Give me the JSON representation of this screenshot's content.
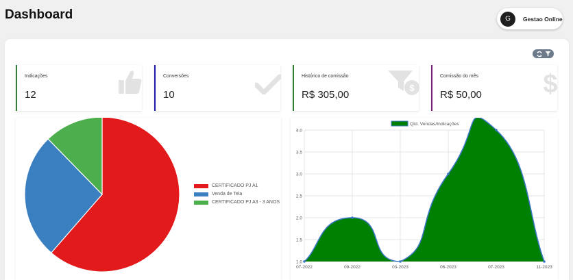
{
  "header": {
    "title": "Dashboard",
    "user": {
      "initial": "G",
      "name": "Gestao Online"
    }
  },
  "tools": {
    "refresh_icon": "refresh-icon",
    "filter_icon": "filter-icon"
  },
  "cards": [
    {
      "label": "Indicações",
      "value": "12",
      "accent": "#2e7d32",
      "icon": "thumbs-up-icon"
    },
    {
      "label": "Conversões",
      "value": "10",
      "accent": "#1a1aa8",
      "icon": "check-icon"
    },
    {
      "label": "Histórico de comissão",
      "value": "R$ 305,00",
      "accent": "#2e7d32",
      "icon": "funnel-dollar-icon"
    },
    {
      "label": "Comissão do mês",
      "value": "R$ 50,00",
      "accent": "#7b1f7b",
      "icon": "dollar-icon"
    }
  ],
  "chart_data": [
    {
      "type": "pie",
      "categories": [
        "CERTIFICADO PJ A1",
        "Venda de Tela",
        "CERTIFICADO PJ A3 - 3 ANOS"
      ],
      "values": [
        7,
        3,
        1.4
      ],
      "colors": [
        "#e31a1c",
        "#3a7fc0",
        "#4cae4c"
      ],
      "legend": "right"
    },
    {
      "type": "area",
      "x": [
        "07-2022",
        "09-2022",
        "03-2023",
        "06-2023",
        "07-2023",
        "11-2023"
      ],
      "series": [
        {
          "name": "Qtd. Vendas/Indicações",
          "values": [
            1,
            2,
            1,
            3,
            4,
            1
          ],
          "color": "#008000",
          "line_color": "#3a78c2"
        }
      ],
      "ylim": [
        1,
        4
      ],
      "yticks": [
        "1.0",
        "1.5",
        "2.0",
        "2.5",
        "3.0",
        "3.5",
        "4.0"
      ],
      "grid": true,
      "legend": "top"
    }
  ]
}
